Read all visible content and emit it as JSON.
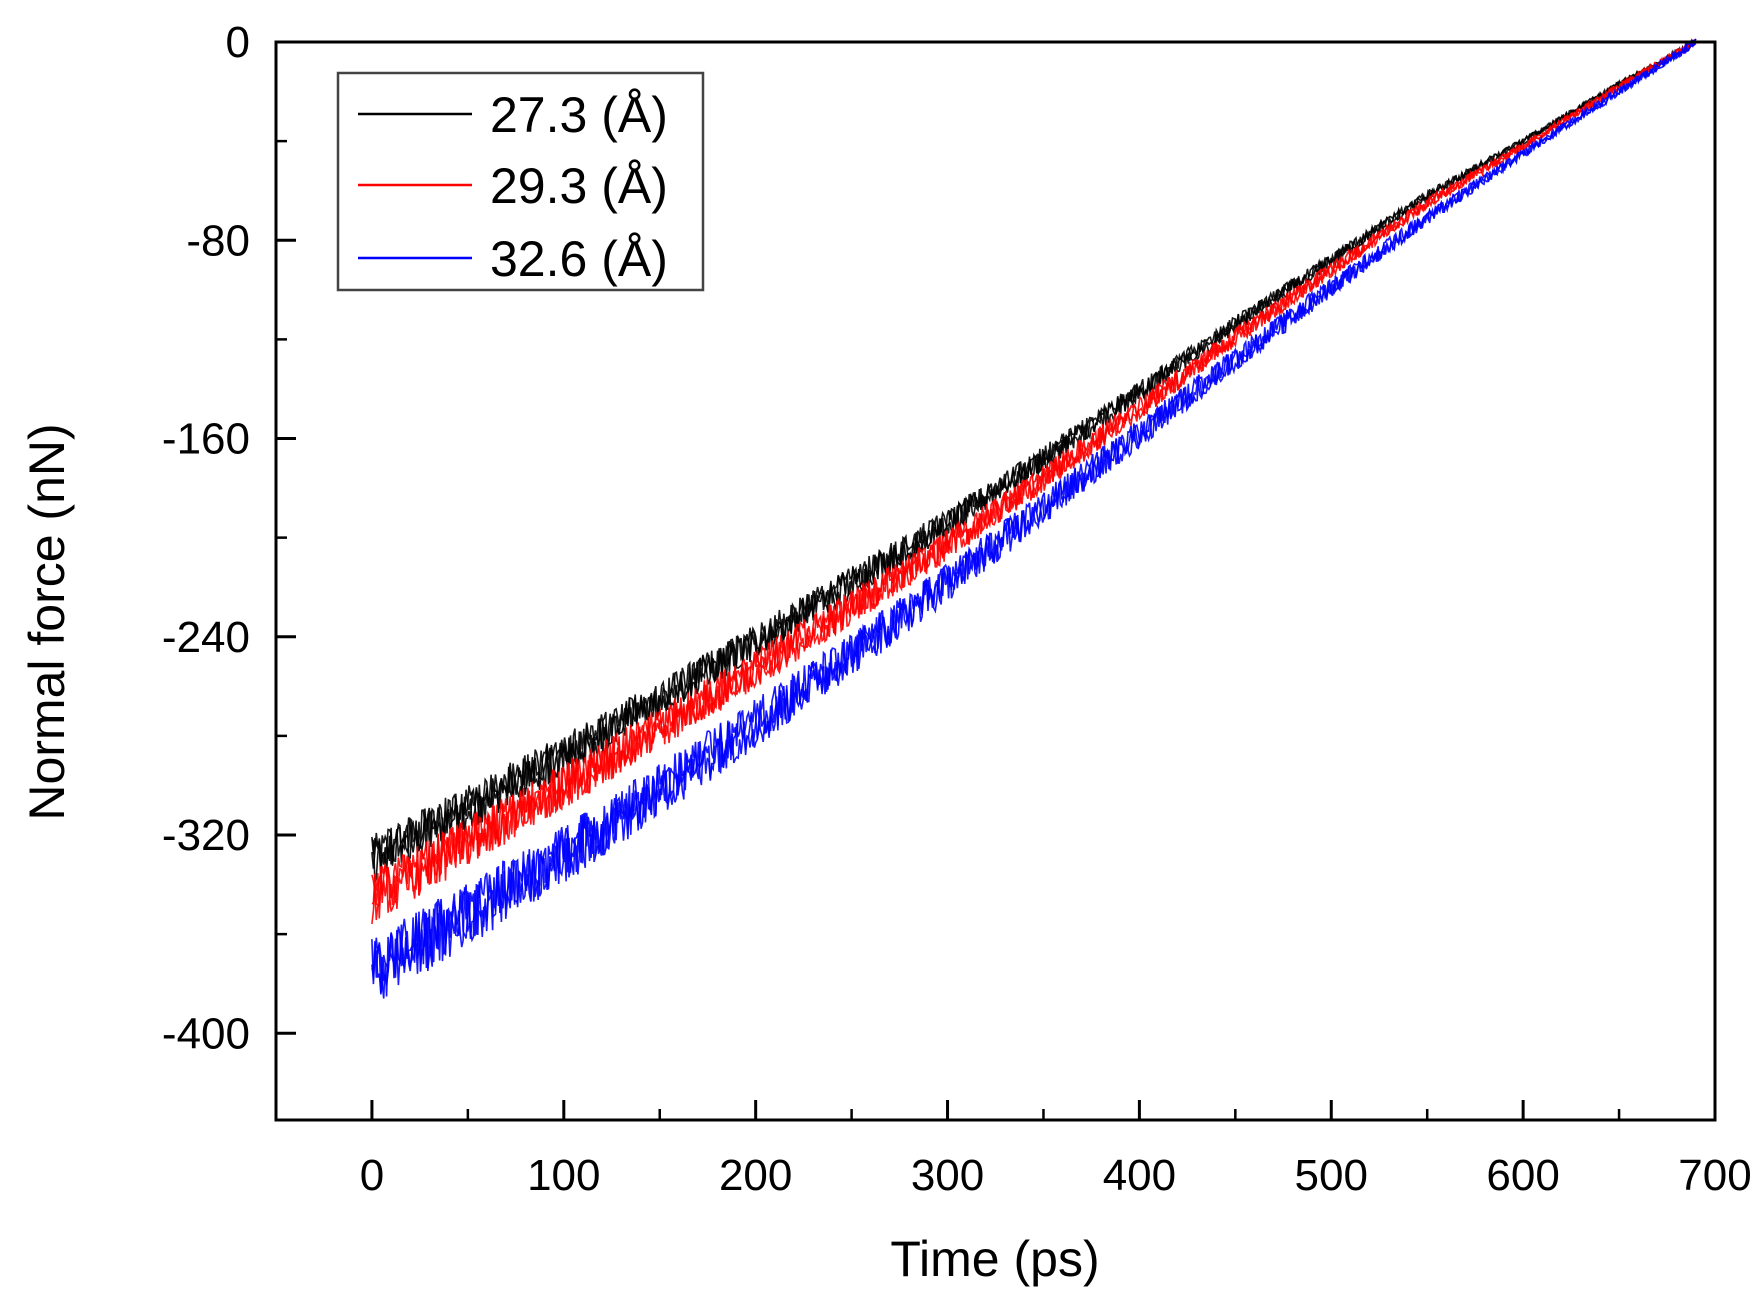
{
  "chart_data": {
    "type": "line",
    "title": "",
    "xlabel": "Time (ps)",
    "ylabel": "Normal force (nN)",
    "xlim": [
      -50,
      700
    ],
    "ylim": [
      -435,
      0
    ],
    "x_ticks": [
      0,
      100,
      200,
      300,
      400,
      500,
      600,
      700
    ],
    "y_ticks": [
      0,
      -80,
      -160,
      -240,
      -320,
      -400
    ],
    "x_tick_labels": [
      "0",
      "100",
      "200",
      "300",
      "400",
      "500",
      "600",
      "700"
    ],
    "y_tick_labels": [
      "0",
      "-80",
      "-160",
      "-240",
      "-320",
      "-400"
    ],
    "grid": false,
    "legend_position": "top-left",
    "series": [
      {
        "name": "27.3 (Å)",
        "color": "#000000",
        "noise_amplitude": 10,
        "x": [
          0,
          50,
          100,
          150,
          200,
          250,
          300,
          350,
          400,
          450,
          500,
          550,
          600,
          650,
          690
        ],
        "y": [
          -330,
          -309,
          -288,
          -265,
          -242,
          -218,
          -194,
          -168,
          -141,
          -114,
          -88,
          -62,
          -40,
          -17,
          0
        ]
      },
      {
        "name": "29.3 (Å)",
        "color": "#ff0000",
        "noise_amplitude": 11,
        "x": [
          0,
          50,
          100,
          150,
          200,
          250,
          300,
          350,
          400,
          450,
          500,
          550,
          600,
          650,
          690
        ],
        "y": [
          -345,
          -323,
          -300,
          -277,
          -253,
          -228,
          -203,
          -176,
          -148,
          -119,
          -92,
          -65,
          -42,
          -18,
          0
        ]
      },
      {
        "name": "32.6 (Å)",
        "color": "#0000ff",
        "noise_amplitude": 14,
        "x": [
          0,
          50,
          100,
          150,
          200,
          250,
          300,
          350,
          400,
          450,
          500,
          550,
          600,
          650,
          690
        ],
        "y": [
          -375,
          -352,
          -328,
          -302,
          -275,
          -247,
          -218,
          -188,
          -158,
          -128,
          -99,
          -71,
          -45,
          -20,
          0
        ]
      }
    ]
  }
}
